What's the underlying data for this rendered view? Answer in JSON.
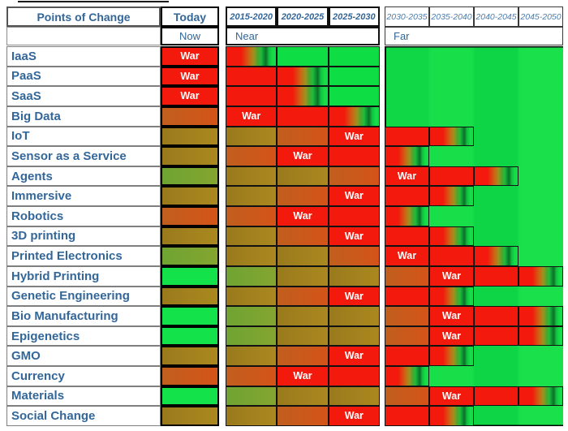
{
  "header": {
    "title": "Points of Change",
    "today": "Today",
    "now": "Now",
    "near": "Near",
    "far": "Far",
    "near_periods": [
      "2015-2020",
      "2020-2025",
      "2025-2030"
    ],
    "far_periods": [
      "2030-2035",
      "2035-2040",
      "2040-2045",
      "2045-2050"
    ]
  },
  "war_label": "War",
  "colors": {
    "label_text": "#336699",
    "war_text": "#ffffff",
    "red": "#f3190c",
    "orange": "#d05a1a",
    "olive": "#a28120",
    "olive_green": "#79a431",
    "bright_green": "#14e24b",
    "cell_green": "#0edd43",
    "far_background_green": "#12d948"
  },
  "chart_data": {
    "type": "heatmap",
    "title": "Points of Change",
    "columns": [
      "Today",
      "2015-2020",
      "2020-2025",
      "2025-2030",
      "2030-2035",
      "2035-2040",
      "2040-2045",
      "2045-2050"
    ],
    "column_groups": [
      {
        "label": "Now",
        "columns": [
          "Today"
        ]
      },
      {
        "label": "Near",
        "columns": [
          "2015-2020",
          "2020-2025",
          "2025-2030"
        ]
      },
      {
        "label": "Far",
        "columns": [
          "2030-2035",
          "2035-2040",
          "2040-2045",
          "2045-2050"
        ]
      }
    ],
    "state_key": [
      "war",
      "red",
      "fade",
      "green",
      "olive",
      "orange",
      "olivegreen",
      "brightgreen",
      "none"
    ],
    "rows": [
      {
        "label": "IaaS",
        "war_period": "Today",
        "states": [
          "war",
          "fade",
          "green",
          "green",
          "none",
          "none",
          "none",
          "none"
        ]
      },
      {
        "label": "PaaS",
        "war_period": "Today",
        "states": [
          "war",
          "red",
          "fade",
          "green",
          "none",
          "none",
          "none",
          "none"
        ]
      },
      {
        "label": "SaaS",
        "war_period": "Today",
        "states": [
          "war",
          "red",
          "fade",
          "green",
          "none",
          "none",
          "none",
          "none"
        ]
      },
      {
        "label": "Big Data",
        "war_period": "2015-2020",
        "states": [
          "orange",
          "war",
          "red",
          "fade",
          "none",
          "none",
          "none",
          "none"
        ]
      },
      {
        "label": "IoT",
        "war_period": "2025-2030",
        "states": [
          "olive",
          "olive",
          "orange",
          "war",
          "red",
          "fade",
          "none",
          "none"
        ]
      },
      {
        "label": "Sensor as a Service",
        "war_period": "2020-2025",
        "states": [
          "olive",
          "orange",
          "war",
          "red",
          "fade",
          "none",
          "none",
          "none"
        ]
      },
      {
        "label": "Agents",
        "war_period": "2030-2035",
        "states": [
          "olivegreen",
          "olive",
          "olive",
          "orange",
          "war",
          "red",
          "fade",
          "none"
        ]
      },
      {
        "label": "Immersive",
        "war_period": "2025-2030",
        "states": [
          "olive",
          "olive",
          "orange",
          "war",
          "red",
          "fade",
          "none",
          "none"
        ]
      },
      {
        "label": "Robotics",
        "war_period": "2020-2025",
        "states": [
          "orange",
          "orange",
          "war",
          "red",
          "fade",
          "none",
          "none",
          "none"
        ]
      },
      {
        "label": "3D printing",
        "war_period": "2025-2030",
        "states": [
          "olive",
          "olive",
          "orange",
          "war",
          "red",
          "fade",
          "none",
          "none"
        ]
      },
      {
        "label": "Printed Electronics",
        "war_period": "2030-2035",
        "states": [
          "olivegreen",
          "olive",
          "olive",
          "orange",
          "war",
          "red",
          "fade",
          "none"
        ]
      },
      {
        "label": "Hybrid Printing",
        "war_period": "2035-2040",
        "states": [
          "brightgreen",
          "olivegreen",
          "olive",
          "olive",
          "orange",
          "war",
          "red",
          "fade"
        ]
      },
      {
        "label": "Genetic Engineering",
        "war_period": "2025-2030",
        "states": [
          "olive",
          "olive",
          "orange",
          "war",
          "red",
          "fade",
          "none",
          "none"
        ]
      },
      {
        "label": "Bio Manufacturing",
        "war_period": "2035-2040",
        "states": [
          "brightgreen",
          "olivegreen",
          "olive",
          "olive",
          "orange",
          "war",
          "red",
          "fade"
        ]
      },
      {
        "label": "Epigenetics",
        "war_period": "2035-2040",
        "states": [
          "brightgreen",
          "olivegreen",
          "olive",
          "olive",
          "orange",
          "war",
          "red",
          "fade"
        ]
      },
      {
        "label": "GMO",
        "war_period": "2025-2030",
        "states": [
          "olive",
          "olive",
          "orange",
          "war",
          "red",
          "fade",
          "none",
          "none"
        ]
      },
      {
        "label": "Currency",
        "war_period": "2020-2025",
        "states": [
          "orange",
          "orange",
          "war",
          "red",
          "fade",
          "none",
          "none",
          "none"
        ]
      },
      {
        "label": "Materials",
        "war_period": "2035-2040",
        "states": [
          "brightgreen",
          "olivegreen",
          "olive",
          "olive",
          "orange",
          "war",
          "red",
          "fade"
        ]
      },
      {
        "label": "Social Change",
        "war_period": "2025-2030",
        "states": [
          "olive",
          "olive",
          "orange",
          "war",
          "red",
          "fade",
          "none",
          "none"
        ]
      }
    ]
  }
}
